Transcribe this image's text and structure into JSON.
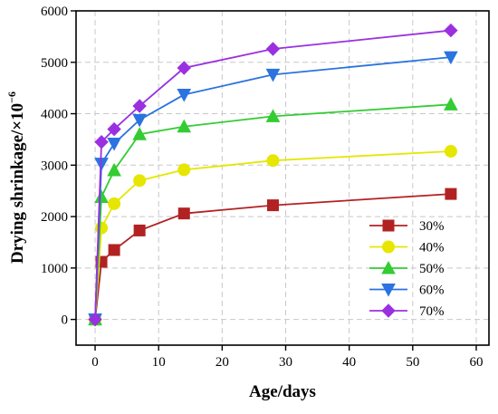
{
  "chart_data": {
    "type": "line",
    "xlabel": "Age/days",
    "ylabel": "Drying shrinkage/×10",
    "ylabel_exponent": "−6",
    "xlim": [
      -3,
      62
    ],
    "ylim": [
      -500,
      6000
    ],
    "xticks": [
      0,
      10,
      20,
      30,
      40,
      50,
      60
    ],
    "yticks": [
      0,
      1000,
      2000,
      3000,
      4000,
      5000,
      6000
    ],
    "grid": true,
    "legend_position": "bottom-right",
    "x": [
      0,
      1,
      3,
      7,
      14,
      28,
      56
    ],
    "series": [
      {
        "name": "30%",
        "marker": "square",
        "color": "#b22222",
        "values": [
          0,
          1120,
          1350,
          1730,
          2060,
          2220,
          2440
        ]
      },
      {
        "name": "40%",
        "marker": "circle",
        "color": "#e6e600",
        "values": [
          0,
          1780,
          2250,
          2700,
          2910,
          3090,
          3270
        ]
      },
      {
        "name": "50%",
        "marker": "triangle-up",
        "color": "#33cc33",
        "values": [
          0,
          2380,
          2900,
          3600,
          3750,
          3950,
          4180
        ]
      },
      {
        "name": "60%",
        "marker": "triangle-down",
        "color": "#2a73e0",
        "values": [
          0,
          3030,
          3420,
          3880,
          4370,
          4760,
          5100
        ]
      },
      {
        "name": "70%",
        "marker": "diamond",
        "color": "#9b30e0",
        "values": [
          0,
          3450,
          3700,
          4150,
          4890,
          5260,
          5620
        ]
      }
    ]
  }
}
